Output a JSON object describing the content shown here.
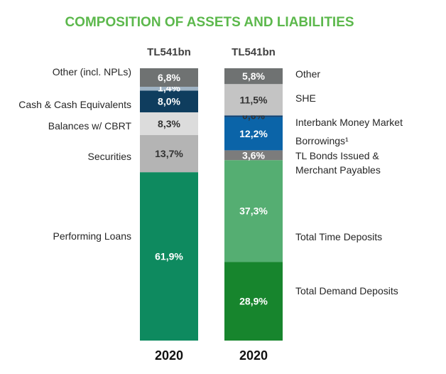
{
  "title": "COMPOSITION OF ASSETS AND LIABILITIES",
  "chart_data": {
    "type": "bar",
    "stacked": true,
    "unit": "%",
    "series": [
      {
        "side": "assets",
        "total": "TL541bn",
        "year": "2020",
        "segments": [
          {
            "name": "Performing Loans",
            "value": 61.9,
            "label": "61,9%",
            "color": "#0e8a5f",
            "text_color": "#ffffff"
          },
          {
            "name": "Securities",
            "value": 13.7,
            "label": "13,7%",
            "color": "#b4b4b4",
            "text_color": "#333333"
          },
          {
            "name": "Balances w/ CBRT",
            "value": 8.3,
            "label": "8,3%",
            "color": "#dcdcdc",
            "text_color": "#333333"
          },
          {
            "name": "Cash & Cash Equivalents",
            "value": 8.0,
            "label": "8,0%",
            "color": "#0f3d5e",
            "text_color": "#ffffff"
          },
          {
            "name": "",
            "value": 1.4,
            "label": "1,4%",
            "color": "#9fb3c4",
            "text_color": "#ffffff"
          },
          {
            "name": "Other (incl. NPLs)",
            "value": 6.8,
            "label": "6,8%",
            "color": "#6f7272",
            "text_color": "#ffffff"
          }
        ]
      },
      {
        "side": "liabilities",
        "total": "TL541bn",
        "year": "2020",
        "segments": [
          {
            "name": "Total Demand Deposits",
            "value": 28.9,
            "label": "28,9%",
            "color": "#17852d",
            "text_color": "#ffffff"
          },
          {
            "name": "Total Time Deposits",
            "value": 37.3,
            "label": "37,3%",
            "color": "#55ae72",
            "text_color": "#ffffff"
          },
          {
            "name": "TL Bonds Issued & Merchant Payables",
            "value": 3.6,
            "label": "3,6%",
            "color": "#7c7c7c",
            "text_color": "#ffffff"
          },
          {
            "name": "Borrowings¹",
            "value": 12.2,
            "label": "12,2%",
            "color": "#0b64a8",
            "text_color": "#ffffff"
          },
          {
            "name": "Interbank Money Market",
            "value": 0.6,
            "label": "0,6%",
            "color": "#0d3f72",
            "text_color": "#333333"
          },
          {
            "name": "SHE",
            "value": 11.5,
            "label": "11,5%",
            "color": "#c4c4c4",
            "text_color": "#333333"
          },
          {
            "name": "Other",
            "value": 5.8,
            "label": "5,8%",
            "color": "#6f7272",
            "text_color": "#ffffff"
          }
        ]
      }
    ]
  }
}
